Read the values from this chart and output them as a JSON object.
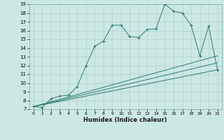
{
  "xlabel": "Humidex (Indice chaleur)",
  "bg_color": "#cce8e4",
  "grid_color": "#b0d0cc",
  "line_color": "#2e7d70",
  "xlim": [
    -0.5,
    21.5
  ],
  "ylim": [
    7,
    19
  ],
  "xticks": [
    0,
    1,
    2,
    3,
    4,
    5,
    6,
    7,
    8,
    9,
    10,
    11,
    12,
    13,
    14,
    15,
    16,
    17,
    18,
    19,
    20,
    21
  ],
  "yticks": [
    7,
    8,
    9,
    10,
    11,
    12,
    13,
    14,
    15,
    16,
    17,
    18,
    19
  ],
  "series_main": {
    "x": [
      0,
      1,
      2,
      3,
      4,
      5,
      6,
      7,
      8,
      9,
      10,
      11,
      12,
      13,
      14,
      15,
      16,
      17,
      18,
      19,
      20,
      21
    ],
    "y": [
      7.3,
      7.2,
      8.2,
      8.5,
      8.6,
      9.6,
      12.0,
      14.2,
      14.8,
      16.6,
      16.6,
      15.3,
      15.2,
      16.1,
      16.2,
      19.0,
      18.2,
      18.0,
      16.6,
      13.1,
      16.5,
      11.5
    ]
  },
  "series_lines": [
    {
      "x": [
        0,
        21
      ],
      "y": [
        7.3,
        13.1
      ]
    },
    {
      "x": [
        0,
        21
      ],
      "y": [
        7.3,
        11.5
      ]
    },
    {
      "x": [
        0,
        21
      ],
      "y": [
        7.3,
        12.3
      ]
    }
  ]
}
